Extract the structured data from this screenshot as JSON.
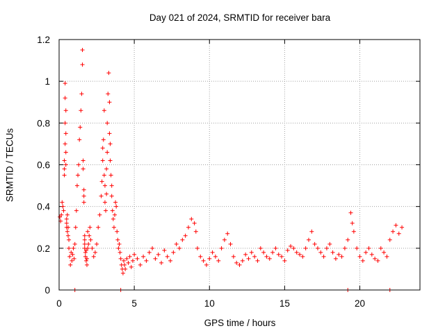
{
  "chart_data": {
    "type": "scatter",
    "title": "Day 021 of 2024, SRMTID for receiver bara",
    "xlabel": "GPS time / hours",
    "ylabel": "SRMTID / TECUs",
    "xlim": [
      0,
      24
    ],
    "ylim": [
      0,
      1.2
    ],
    "xticks": [
      0,
      5,
      10,
      15,
      20
    ],
    "yticks": [
      0,
      0.2,
      0.4,
      0.6,
      0.8,
      1,
      1.2
    ],
    "ytick_labels": [
      "0",
      "0.2",
      "0.4",
      "0.6",
      "0.8",
      "1",
      "1.2"
    ],
    "grid": true,
    "marker": "+",
    "color": "#ff0000",
    "series": [
      {
        "name": "SRMTID",
        "x": [
          0.05,
          0.1,
          0.15,
          0.2,
          0.25,
          0.3,
          0.35,
          0.35,
          0.35,
          0.4,
          0.4,
          0.4,
          0.4,
          0.45,
          0.45,
          0.45,
          0.45,
          0.5,
          0.5,
          0.5,
          0.55,
          0.55,
          0.6,
          0.6,
          0.65,
          0.65,
          0.7,
          0.75,
          0.8,
          0.85,
          0.9,
          0.95,
          1.0,
          1.05,
          1.1,
          1.15,
          1.2,
          1.25,
          1.3,
          1.35,
          1.4,
          1.45,
          1.5,
          1.55,
          1.55,
          1.6,
          1.6,
          1.65,
          1.65,
          1.65,
          1.7,
          1.7,
          1.7,
          1.7,
          1.75,
          1.75,
          1.8,
          1.8,
          1.85,
          1.85,
          1.9,
          1.9,
          1.95,
          2.0,
          2.05,
          2.1,
          2.2,
          2.3,
          2.4,
          2.5,
          2.6,
          2.7,
          2.8,
          2.85,
          2.9,
          2.9,
          2.95,
          3.0,
          3.0,
          3.05,
          3.05,
          3.1,
          3.15,
          3.15,
          3.2,
          3.2,
          3.25,
          3.3,
          3.35,
          3.35,
          3.4,
          3.4,
          3.45,
          3.5,
          3.5,
          3.55,
          3.6,
          3.65,
          3.7,
          3.75,
          3.8,
          3.85,
          3.9,
          3.95,
          4.0,
          4.05,
          4.1,
          4.15,
          4.2,
          4.25,
          4.3,
          4.35,
          4.4,
          4.5,
          4.6,
          4.7,
          4.8,
          4.9,
          5.0,
          5.2,
          5.4,
          5.6,
          5.8,
          6.0,
          6.2,
          6.4,
          6.6,
          6.8,
          7.0,
          7.2,
          7.4,
          7.6,
          7.8,
          8.0,
          8.2,
          8.4,
          8.6,
          8.8,
          9.0,
          9.1,
          9.2,
          9.4,
          9.6,
          9.8,
          10.0,
          10.2,
          10.4,
          10.6,
          10.8,
          11.0,
          11.2,
          11.4,
          11.6,
          11.8,
          12.0,
          12.2,
          12.4,
          12.6,
          12.8,
          13.0,
          13.2,
          13.4,
          13.6,
          13.8,
          14.0,
          14.2,
          14.4,
          14.6,
          14.8,
          15.0,
          15.2,
          15.4,
          15.6,
          15.8,
          16.0,
          16.2,
          16.4,
          16.6,
          16.8,
          17.0,
          17.2,
          17.4,
          17.6,
          17.8,
          18.0,
          18.2,
          18.4,
          18.6,
          18.8,
          19.0,
          19.2,
          19.4,
          19.5,
          19.6,
          19.8,
          20.0,
          20.2,
          20.4,
          20.6,
          20.8,
          21.0,
          21.2,
          21.4,
          21.6,
          21.8,
          22.0,
          22.2,
          22.4,
          22.6,
          22.8,
          1.05,
          4.1,
          19.2,
          22.0
        ],
        "y": [
          0.35,
          0.33,
          0.36,
          0.42,
          0.4,
          0.38,
          0.55,
          0.62,
          0.58,
          0.7,
          0.8,
          0.92,
          0.99,
          0.86,
          0.75,
          0.66,
          0.6,
          0.32,
          0.3,
          0.34,
          0.28,
          0.36,
          0.3,
          0.26,
          0.2,
          0.24,
          0.16,
          0.12,
          0.18,
          0.14,
          0.17,
          0.2,
          0.15,
          0.22,
          0.3,
          0.38,
          0.5,
          0.55,
          0.6,
          0.72,
          0.78,
          0.86,
          0.94,
          1.08,
          1.15,
          0.58,
          0.62,
          0.45,
          0.48,
          0.42,
          0.22,
          0.26,
          0.2,
          0.24,
          0.18,
          0.16,
          0.14,
          0.19,
          0.12,
          0.15,
          0.2,
          0.28,
          0.22,
          0.26,
          0.3,
          0.24,
          0.2,
          0.16,
          0.18,
          0.22,
          0.3,
          0.36,
          0.45,
          0.52,
          0.62,
          0.68,
          0.72,
          0.86,
          0.55,
          0.5,
          0.42,
          0.38,
          0.46,
          0.58,
          0.66,
          0.8,
          0.94,
          1.04,
          0.9,
          0.75,
          0.7,
          0.62,
          0.55,
          0.5,
          0.45,
          0.38,
          0.34,
          0.3,
          0.36,
          0.42,
          0.4,
          0.28,
          0.24,
          0.2,
          0.22,
          0.18,
          0.15,
          0.12,
          0.1,
          0.08,
          0.14,
          0.12,
          0.1,
          0.15,
          0.13,
          0.16,
          0.11,
          0.14,
          0.17,
          0.15,
          0.12,
          0.16,
          0.14,
          0.18,
          0.2,
          0.15,
          0.17,
          0.13,
          0.19,
          0.16,
          0.14,
          0.18,
          0.22,
          0.2,
          0.24,
          0.26,
          0.3,
          0.34,
          0.32,
          0.28,
          0.2,
          0.16,
          0.14,
          0.12,
          0.15,
          0.18,
          0.16,
          0.14,
          0.2,
          0.24,
          0.27,
          0.22,
          0.16,
          0.13,
          0.12,
          0.14,
          0.17,
          0.15,
          0.18,
          0.16,
          0.14,
          0.2,
          0.18,
          0.16,
          0.15,
          0.18,
          0.2,
          0.17,
          0.16,
          0.14,
          0.19,
          0.21,
          0.2,
          0.18,
          0.17,
          0.16,
          0.2,
          0.24,
          0.28,
          0.22,
          0.2,
          0.18,
          0.16,
          0.2,
          0.22,
          0.18,
          0.15,
          0.17,
          0.16,
          0.2,
          0.24,
          0.37,
          0.32,
          0.28,
          0.2,
          0.16,
          0.14,
          0.18,
          0.2,
          0.17,
          0.15,
          0.14,
          0.2,
          0.18,
          0.16,
          0.24,
          0.28,
          0.31,
          0.27,
          0.3,
          0.0,
          0.0,
          0.0,
          0.0
        ]
      }
    ]
  }
}
